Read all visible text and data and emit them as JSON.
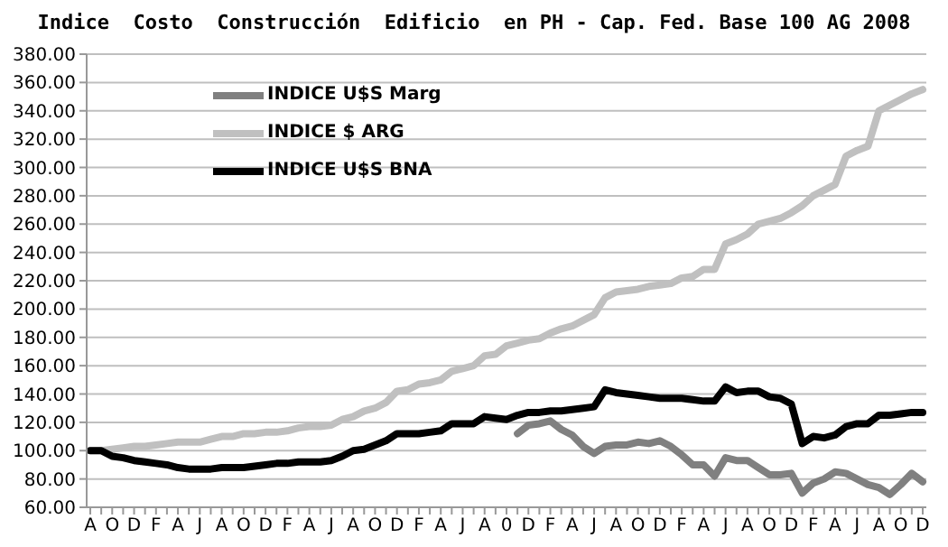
{
  "chart_data": {
    "type": "line",
    "title": "Indice  Costo  Construcción  Edificio  en PH - Cap. Fed. Base 100 AG 2008",
    "categories": [
      "A",
      null,
      "O",
      null,
      "D",
      null,
      "F",
      null,
      "A",
      null,
      "J",
      null,
      "A",
      null,
      "O",
      null,
      "D",
      null,
      "F",
      null,
      "A",
      null,
      "J",
      null,
      "A",
      null,
      "O",
      null,
      "D",
      null,
      "F",
      null,
      "A",
      null,
      "J",
      null,
      "A",
      null,
      "0",
      null,
      "D",
      null,
      "F",
      null,
      "A",
      null,
      "J",
      null,
      "A",
      null,
      "O",
      null,
      "D",
      null,
      "F",
      null,
      "A",
      null,
      "J",
      null,
      "A",
      null,
      "O",
      null,
      "D",
      null,
      "F",
      null,
      "A",
      null,
      "J",
      null,
      "A",
      null,
      "O",
      null,
      "D"
    ],
    "series": [
      {
        "name": "INDICE U$S Marg",
        "color": "#808080",
        "values": [
          null,
          null,
          null,
          null,
          null,
          null,
          null,
          null,
          null,
          null,
          null,
          null,
          null,
          null,
          null,
          null,
          null,
          null,
          null,
          null,
          null,
          null,
          null,
          null,
          null,
          null,
          null,
          null,
          null,
          null,
          null,
          null,
          null,
          null,
          null,
          null,
          null,
          null,
          null,
          112,
          118,
          119,
          121,
          115,
          111,
          103,
          98,
          103,
          104,
          104,
          106,
          105,
          107,
          103,
          97,
          90,
          90,
          82,
          95,
          93,
          93,
          88,
          83,
          83,
          84,
          70,
          77,
          80,
          85,
          84,
          80,
          76,
          74,
          69,
          76,
          84,
          78
        ]
      },
      {
        "name": "INDICE $ ARG",
        "color": "#c0c0c0",
        "values": [
          100,
          100,
          101,
          102,
          103,
          103,
          104,
          105,
          106,
          106,
          106,
          108,
          110,
          110,
          112,
          112,
          113,
          113,
          114,
          116,
          117,
          117,
          118,
          122,
          124,
          128,
          130,
          134,
          142,
          143,
          147,
          148,
          150,
          156,
          158,
          160,
          167,
          168,
          174,
          176,
          178,
          179,
          183,
          186,
          188,
          192,
          196,
          208,
          212,
          213,
          214,
          216,
          217,
          218,
          222,
          223,
          228,
          228,
          246,
          249,
          253,
          260,
          262,
          264,
          268,
          273,
          280,
          284,
          288,
          308,
          312,
          315,
          340,
          344,
          348,
          352,
          355
        ]
      },
      {
        "name": "INDICE U$S BNA",
        "color": "#000000",
        "values": [
          100,
          100,
          96,
          95,
          93,
          92,
          91,
          90,
          88,
          87,
          87,
          87,
          88,
          88,
          88,
          89,
          90,
          91,
          91,
          92,
          92,
          92,
          93,
          96,
          100,
          101,
          104,
          107,
          112,
          112,
          112,
          113,
          114,
          119,
          119,
          119,
          124,
          123,
          122,
          125,
          127,
          127,
          128,
          128,
          129,
          130,
          131,
          143,
          141,
          140,
          139,
          138,
          137,
          137,
          137,
          136,
          135,
          135,
          145,
          141,
          142,
          142,
          138,
          137,
          133,
          105,
          110,
          109,
          111,
          117,
          119,
          119,
          125,
          125,
          126,
          127,
          127
        ]
      }
    ],
    "ylim": [
      60,
      380
    ],
    "yticks": [
      {
        "value": 60,
        "label": "60.00"
      },
      {
        "value": 80,
        "label": "80.00"
      },
      {
        "value": 100,
        "label": "100.00"
      },
      {
        "value": 120,
        "label": "120.00"
      },
      {
        "value": 140,
        "label": "140.00"
      },
      {
        "value": 160,
        "label": "160.00"
      },
      {
        "value": 180,
        "label": "180.00"
      },
      {
        "value": 200,
        "label": "200.00"
      },
      {
        "value": 220,
        "label": "220.00"
      },
      {
        "value": 240,
        "label": "240.00"
      },
      {
        "value": 260,
        "label": "260.00"
      },
      {
        "value": 280,
        "label": "280.00"
      },
      {
        "value": 300,
        "label": "300.00"
      },
      {
        "value": 320,
        "label": "320.00"
      },
      {
        "value": 340,
        "label": "340.00"
      },
      {
        "value": 360,
        "label": "360.00"
      },
      {
        "value": 380,
        "label": "380.00"
      }
    ],
    "grid": "y",
    "legend": "top left",
    "marker": "none",
    "line_style": "solid"
  }
}
